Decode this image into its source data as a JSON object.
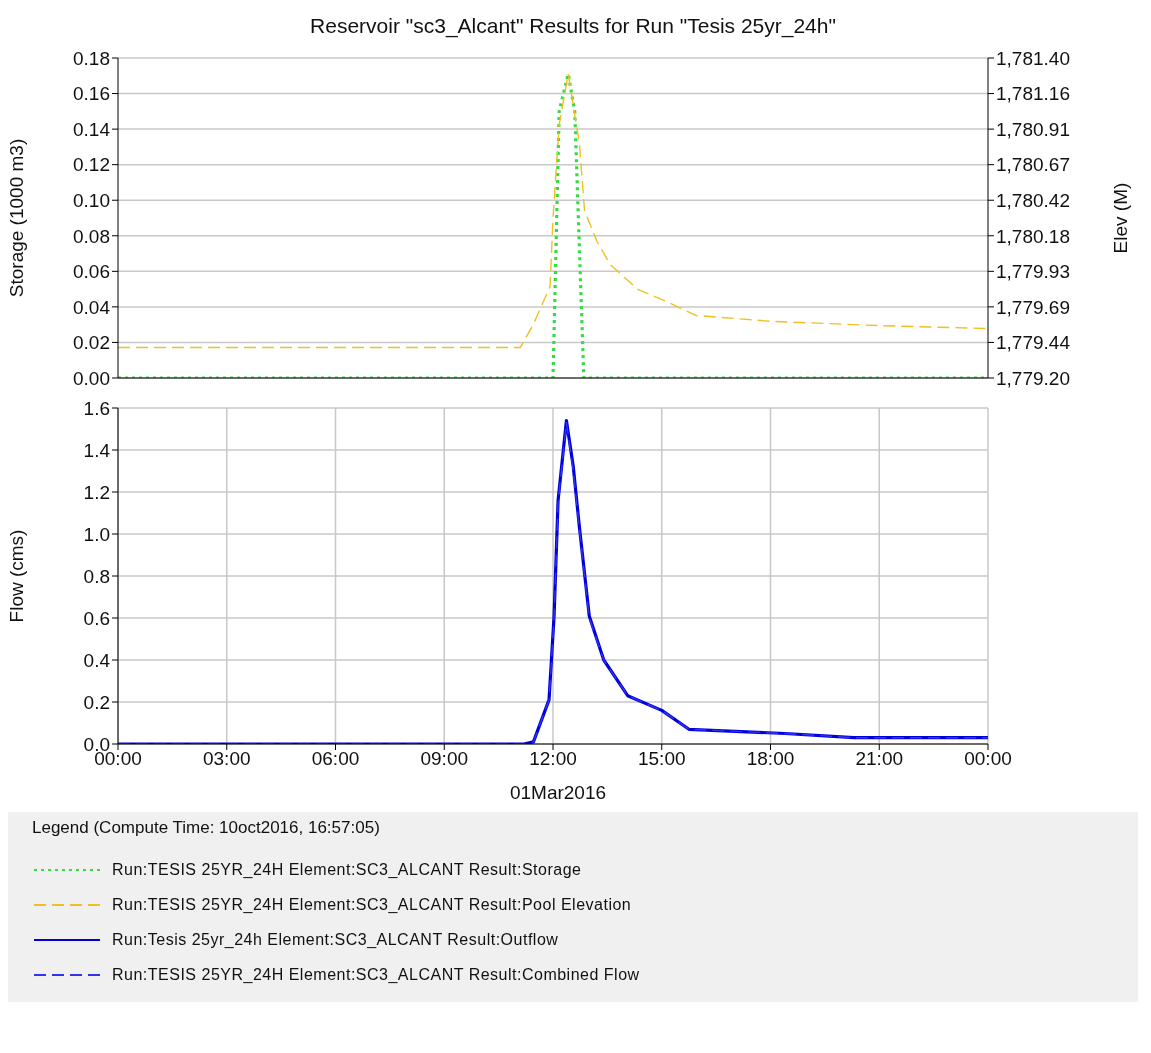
{
  "chart_data": [
    {
      "type": "line",
      "title": "Reservoir \"sc3_Alcant\" Results for Run \"Tesis 25yr_24h\"",
      "ylabel": "Storage (1000 m3)",
      "y2label": "Elev (M)",
      "xlim": [
        0,
        24
      ],
      "xticks": [
        {
          "value": 0,
          "label": null
        },
        {
          "value": 3,
          "label": null
        },
        {
          "value": 6,
          "label": null
        },
        {
          "value": 9,
          "label": null
        },
        {
          "value": 12,
          "label": null
        },
        {
          "value": 15,
          "label": null
        },
        {
          "value": 18,
          "label": null
        },
        {
          "value": 21,
          "label": null
        },
        {
          "value": 24,
          "label": null
        }
      ],
      "ylim": [
        0,
        0.18
      ],
      "yticks": [
        {
          "value": 0,
          "label": "0.00"
        },
        0.02,
        0.04,
        0.06,
        0.08,
        {
          "value": 0.1,
          "label": "0.10"
        },
        0.12,
        0.14,
        0.16,
        0.18
      ],
      "y2lim": [
        1779.2,
        1781.4
      ],
      "y2ticks": [
        {
          "value": 1779.2,
          "label": "1,779.20"
        },
        {
          "value": 1779.4444,
          "label": "1,779.44"
        },
        {
          "value": 1779.6889,
          "label": "1,779.69"
        },
        {
          "value": 1779.9333,
          "label": "1,779.93"
        },
        {
          "value": 1780.1778,
          "label": "1,780.18"
        },
        {
          "value": 1780.4222,
          "label": "1,780.42"
        },
        {
          "value": 1780.6667,
          "label": "1,780.67"
        },
        {
          "value": 1780.9111,
          "label": "1,780.91"
        },
        {
          "value": 1781.1556,
          "label": "1,781.16"
        },
        {
          "value": 1781.4,
          "label": "1,781.40"
        }
      ],
      "grid": true,
      "tick_labels": "y",
      "series": [
        {
          "name": "Run:TESIS 25YR_24H Element:SC3_ALCANT Result:Storage",
          "color": "#33dd44",
          "line_style": "dotted",
          "x": [
            0,
            12.0,
            12.17,
            12.42,
            12.6,
            12.85,
            24
          ],
          "values": [
            0,
            0,
            0.15,
            0.171,
            0.15,
            0,
            0
          ]
        },
        {
          "name": "Run:TESIS 25YR_24H Element:SC3_ALCANT Result:Pool Elevation",
          "color": "#f0c020",
          "line_style": "dashed",
          "axis": "y2",
          "x": [
            0,
            11.1,
            11.46,
            11.92,
            12.0,
            12.17,
            12.42,
            12.73,
            12.87,
            13.21,
            13.58,
            14.34,
            15.18,
            15.94,
            18.0,
            21.0,
            24.0
          ],
          "values": [
            1779.41,
            1779.41,
            1779.57,
            1779.83,
            1780.3,
            1780.94,
            1781.29,
            1780.81,
            1780.35,
            1780.14,
            1779.98,
            1779.81,
            1779.72,
            1779.63,
            1779.59,
            1779.56,
            1779.54
          ]
        }
      ]
    },
    {
      "type": "line",
      "ylabel": "Flow (cms)",
      "xlim": [
        0,
        24
      ],
      "xticks": [
        {
          "value": 0,
          "label": "00:00"
        },
        {
          "value": 3,
          "label": "03:00"
        },
        {
          "value": 6,
          "label": "06:00"
        },
        {
          "value": 9,
          "label": "09:00"
        },
        {
          "value": 12,
          "label": "12:00"
        },
        {
          "value": 15,
          "label": "15:00"
        },
        {
          "value": 18,
          "label": "18:00"
        },
        {
          "value": 21,
          "label": "21:00"
        },
        {
          "value": 24,
          "label": "00:00"
        }
      ],
      "ylim": [
        0,
        1.6
      ],
      "yticks": [
        {
          "value": 0,
          "label": "0.0"
        },
        0.2,
        0.4,
        0.6,
        0.8,
        {
          "value": 1,
          "label": "1.0"
        },
        1.2,
        1.4,
        1.6
      ],
      "grid": true,
      "legend": "bottom",
      "legend_title": "Legend (Compute Time: 10oct2016, 16:57:05)",
      "annotations": [
        "01Mar2016"
      ],
      "series": [
        {
          "name": "Run:Tesis 25yr_24h Element:SC3_ALCANT Result:Outflow",
          "color": "#0000dd",
          "line_style": "solid",
          "x": [
            0,
            11.2,
            11.46,
            11.89,
            12.03,
            12.14,
            12.37,
            12.56,
            12.73,
            13.0,
            13.4,
            14.06,
            15.0,
            15.75,
            18.4,
            20.3,
            24
          ],
          "values": [
            0,
            0,
            0.01,
            0.21,
            0.61,
            1.16,
            1.54,
            1.32,
            1.03,
            0.61,
            0.4,
            0.23,
            0.16,
            0.07,
            0.05,
            0.03,
            0.03
          ]
        },
        {
          "name": "Run:TESIS 25YR_24H Element:SC3_ALCANT Result:Combined Flow",
          "color": "#3333ee",
          "line_style": "dashed",
          "x": [
            0,
            11.2,
            11.46,
            11.89,
            12.03,
            12.14,
            12.37,
            12.56,
            12.73,
            13.0,
            13.4,
            14.06,
            15.0,
            15.75,
            18.4,
            20.3,
            24
          ],
          "values": [
            0,
            0,
            0.01,
            0.21,
            0.6,
            1.15,
            1.53,
            1.3,
            1.02,
            0.6,
            0.4,
            0.23,
            0.16,
            0.07,
            0.05,
            0.03,
            0.03
          ]
        }
      ]
    }
  ]
}
